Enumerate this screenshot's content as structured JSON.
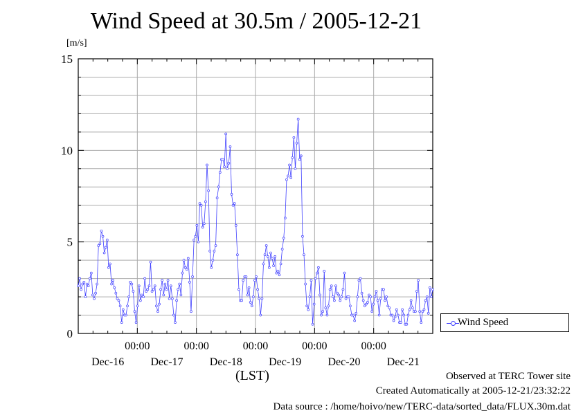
{
  "chart_data": {
    "type": "line",
    "title": "Wind Speed at 30.5m / 2005-12-21",
    "ylabel": "[m/s]",
    "xlabel": "(LST)",
    "ylim": [
      0,
      15
    ],
    "yticks": [
      0,
      5,
      10,
      15
    ],
    "xlim": [
      -17,
      127
    ],
    "x_tick_times": [
      "00:00",
      "00:00",
      "00:00",
      "00:00",
      "00:00"
    ],
    "x_tick_hours": [
      7,
      31,
      55,
      79,
      103
    ],
    "day_labels": [
      "Dec-16",
      "Dec-17",
      "Dec-18",
      "Dec-19",
      "Dec-20",
      "Dec-21"
    ],
    "day_label_hours": [
      -5,
      19,
      43,
      67,
      91,
      115
    ],
    "grid": true,
    "legend_position": "outside-right-bottom",
    "color": "#4040ff",
    "series": [
      {
        "name": "Wind Speed",
        "x_unit": "hours",
        "values": [
          2.6,
          3.0,
          2.4,
          2.7,
          2.8,
          2.0,
          2.7,
          2.6,
          3.0,
          3.3,
          2.1,
          1.9,
          2.2,
          2.7,
          4.8,
          4.9,
          5.6,
          5.3,
          4.4,
          4.7,
          5.1,
          3.6,
          3.8,
          2.7,
          2.9,
          2.5,
          2.2,
          1.9,
          1.8,
          1.5,
          0.6,
          1.3,
          1.0,
          1.0,
          1.5,
          2.0,
          2.8,
          2.7,
          2.3,
          1.2,
          0.6,
          1.5,
          2.6,
          1.8,
          2.1,
          2.0,
          3.0,
          2.3,
          2.4,
          2.6,
          3.9,
          2.3,
          2.4,
          2.6,
          1.5,
          1.2,
          1.6,
          2.4,
          2.9,
          2.1,
          2.7,
          2.4,
          2.9,
          1.9,
          2.6,
          1.9,
          1.0,
          0.6,
          1.8,
          2.4,
          2.7,
          2.1,
          3.3,
          4.0,
          3.6,
          3.5,
          4.1,
          2.8,
          1.2,
          3.1,
          5.1,
          5.3,
          5.9,
          5.0,
          7.1,
          7.0,
          5.8,
          6.0,
          7.2,
          9.2,
          7.8,
          4.5,
          3.6,
          4.0,
          4.5,
          4.8,
          7.4,
          8.0,
          8.8,
          9.5,
          9.5,
          9.1,
          10.9,
          9.0,
          9.3,
          10.2,
          7.6,
          7.0,
          7.1,
          5.9,
          4.3,
          2.4,
          1.8,
          1.8,
          2.9,
          3.1,
          3.1,
          2.1,
          2.5,
          1.7,
          1.5,
          2.0,
          2.9,
          3.1,
          2.4,
          1.9,
          1.0,
          1.9,
          3.8,
          4.3,
          4.8,
          4.2,
          3.6,
          4.4,
          4.1,
          3.7,
          4.2,
          3.3,
          3.4,
          3.2,
          3.8,
          4.6,
          5.2,
          6.3,
          8.4,
          8.6,
          9.2,
          8.5,
          9.6,
          10.7,
          9.0,
          10.4,
          11.7,
          9.5,
          9.7,
          5.3,
          4.3,
          2.7,
          1.5,
          1.3,
          2.0,
          2.9,
          0.5,
          1.6,
          3.0,
          3.3,
          3.6,
          2.1,
          1.0,
          1.2,
          3.4,
          1.4,
          1.0,
          1.5,
          2.4,
          2.6,
          2.0,
          1.8,
          2.6,
          2.2,
          2.1,
          1.8,
          2.0,
          2.4,
          3.3,
          1.9,
          2.0,
          2.0,
          1.5,
          1.0,
          1.0,
          0.7,
          1.1,
          2.0,
          2.9,
          3.0,
          2.2,
          1.8,
          1.5,
          1.6,
          1.7,
          2.1,
          2.0,
          1.2,
          1.6,
          2.0,
          2.3,
          1.8,
          1.0,
          1.9,
          2.4,
          2.4,
          1.8,
          2.0,
          1.5,
          1.4,
          1.0,
          1.0,
          0.7,
          0.9,
          1.3,
          1.0,
          0.6,
          0.6,
          1.3,
          1.0,
          0.5,
          0.5,
          1.0,
          1.3,
          1.8,
          1.4,
          1.2,
          1.2,
          2.3,
          2.9,
          1.2,
          0.6,
          1.2,
          1.3,
          1.8,
          2.0,
          1.1,
          2.5,
          2.0,
          2.4
        ]
      }
    ]
  },
  "footer": {
    "observed": "Observed at TERC Tower site",
    "created": "Created Automatically at 2005-12-21/23:32:22",
    "source": "Data source : /home/hoivo/new/TERC-data/sorted_data/FLUX.30m.dat"
  }
}
